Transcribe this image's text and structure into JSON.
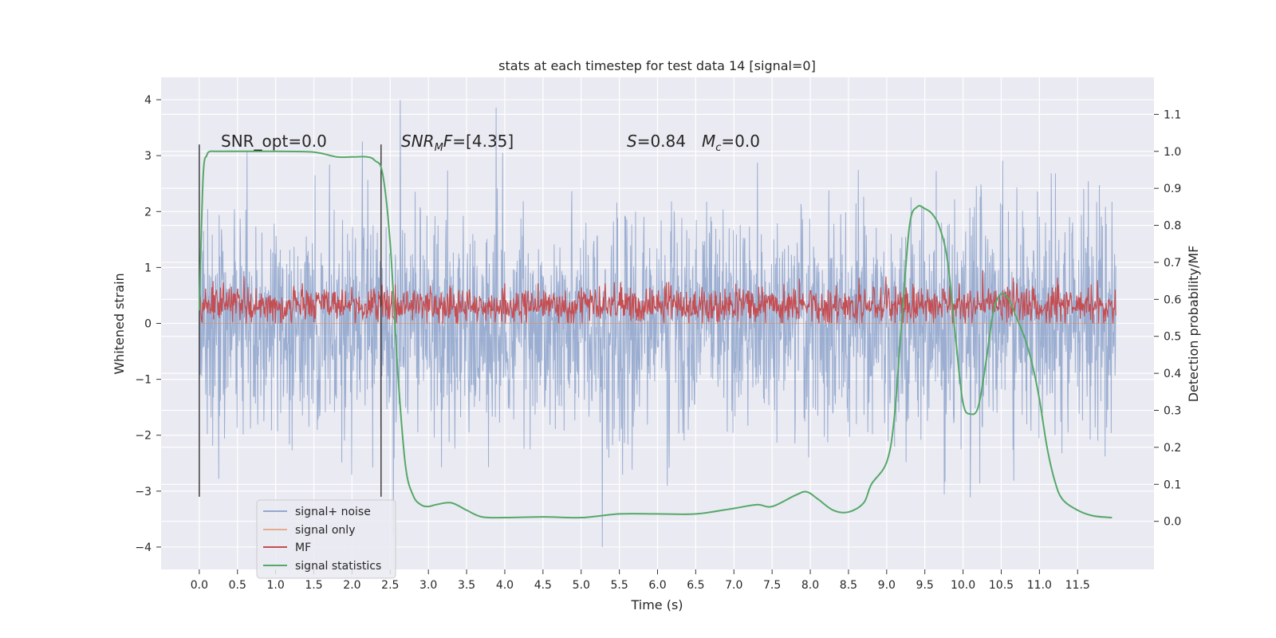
{
  "chart_data": {
    "type": "line",
    "title": "stats at each timestep for test data 14 [signal=0]",
    "xlabel": "Time (s)",
    "ylabel_left": "Whitened strain",
    "ylabel_right": "Detection probability/MF",
    "xlim": [
      -0.5,
      12.5
    ],
    "ylim_left": [
      -4.4,
      4.4
    ],
    "ylim_right": [
      -0.13,
      1.2
    ],
    "x_ticks": [
      0.0,
      0.5,
      1.0,
      1.5,
      2.0,
      2.5,
      3.0,
      3.5,
      4.0,
      4.5,
      5.0,
      5.5,
      6.0,
      6.5,
      7.0,
      7.5,
      8.0,
      8.5,
      9.0,
      9.5,
      10.0,
      10.5,
      11.0,
      11.5
    ],
    "x_tick_labels": [
      "0.0",
      "0.5",
      "1.0",
      "1.5",
      "2.0",
      "2.5",
      "3.0",
      "3.5",
      "4.0",
      "4.5",
      "5.0",
      "5.5",
      "6.0",
      "6.5",
      "7.0",
      "7.5",
      "8.0",
      "8.5",
      "9.0",
      "9.5",
      "10.0",
      "10.5",
      "11.0",
      "11.5"
    ],
    "y_left_ticks": [
      -4,
      -3,
      -2,
      -1,
      0,
      1,
      2,
      3,
      4
    ],
    "y_left_tick_labels": [
      "−4",
      "−3",
      "−2",
      "−1",
      "0",
      "1",
      "2",
      "3",
      "4"
    ],
    "y_right_ticks": [
      0.0,
      0.1,
      0.2,
      0.3,
      0.4,
      0.5,
      0.6,
      0.7,
      0.8,
      0.9,
      1.0,
      1.1
    ],
    "y_right_tick_labels": [
      "0.0",
      "0.1",
      "0.2",
      "0.3",
      "0.4",
      "0.5",
      "0.6",
      "0.7",
      "0.8",
      "0.9",
      "1.0",
      "1.1"
    ],
    "grid": true,
    "legend_position": "lower-left",
    "colors": {
      "background": "#eaeaf2",
      "grid": "#ffffff",
      "signal_noise": "#4c72b0",
      "signal_only": "#dd8452",
      "mf": "#c44e52",
      "signal_statistics": "#55a868",
      "markers": "#333333"
    },
    "series": [
      {
        "name": "signal+ noise",
        "key": "signal_noise",
        "kind": "noise",
        "axis": "left",
        "x_range": [
          0.0,
          12.0
        ],
        "envelope_typical": [
          -1.3,
          1.3
        ],
        "envelope_peak": [
          -4.0,
          4.1
        ]
      },
      {
        "name": "signal only",
        "key": "signal_only",
        "kind": "flat",
        "axis": "left",
        "values": [
          0,
          0
        ]
      },
      {
        "name": "MF",
        "key": "mf",
        "kind": "band",
        "axis": "left",
        "x_range": [
          0.0,
          12.0
        ],
        "range": [
          0.0,
          0.95
        ]
      },
      {
        "name": "signal statistics",
        "key": "signal_statistics",
        "kind": "line",
        "axis": "right",
        "x": [
          0.0,
          0.05,
          0.1,
          0.15,
          0.2,
          0.5,
          1.0,
          1.5,
          1.8,
          2.0,
          2.2,
          2.3,
          2.4,
          2.5,
          2.6,
          2.7,
          2.8,
          2.9,
          3.0,
          3.1,
          3.3,
          3.5,
          3.7,
          4.0,
          4.5,
          5.0,
          5.5,
          6.0,
          6.5,
          7.0,
          7.3,
          7.5,
          7.8,
          7.95,
          8.1,
          8.3,
          8.5,
          8.7,
          8.8,
          9.0,
          9.1,
          9.2,
          9.3,
          9.4,
          9.5,
          9.6,
          9.7,
          9.8,
          9.9,
          10.0,
          10.1,
          10.2,
          10.3,
          10.4,
          10.5,
          10.6,
          10.7,
          10.8,
          10.9,
          11.0,
          11.1,
          11.2,
          11.3,
          11.5,
          11.7,
          11.95
        ],
        "y": [
          0.57,
          0.93,
          0.99,
          1.0,
          1.0,
          1.0,
          1.0,
          0.998,
          0.985,
          0.985,
          0.985,
          0.975,
          0.94,
          0.75,
          0.4,
          0.15,
          0.07,
          0.045,
          0.04,
          0.045,
          0.05,
          0.03,
          0.012,
          0.01,
          0.012,
          0.01,
          0.02,
          0.02,
          0.02,
          0.035,
          0.045,
          0.04,
          0.07,
          0.08,
          0.06,
          0.03,
          0.025,
          0.05,
          0.1,
          0.16,
          0.28,
          0.55,
          0.8,
          0.85,
          0.845,
          0.83,
          0.79,
          0.7,
          0.5,
          0.32,
          0.29,
          0.31,
          0.43,
          0.57,
          0.615,
          0.6,
          0.55,
          0.5,
          0.43,
          0.33,
          0.2,
          0.11,
          0.06,
          0.03,
          0.015,
          0.01
        ]
      },
      {
        "name": "",
        "key": "markers",
        "kind": "vline",
        "axis": "left",
        "x": [
          0.0,
          2.38
        ],
        "y_range": [
          -3.1,
          3.2
        ]
      }
    ],
    "annotations": [
      {
        "text": "SNR_opt=0.0",
        "x": 0.22
      },
      {
        "text": "SNR_MF=[4.35]",
        "x": 2.62
      },
      {
        "text": "S=0.84",
        "x": 5.6
      },
      {
        "text": "M_c=0.0",
        "x": 6.6
      }
    ]
  }
}
